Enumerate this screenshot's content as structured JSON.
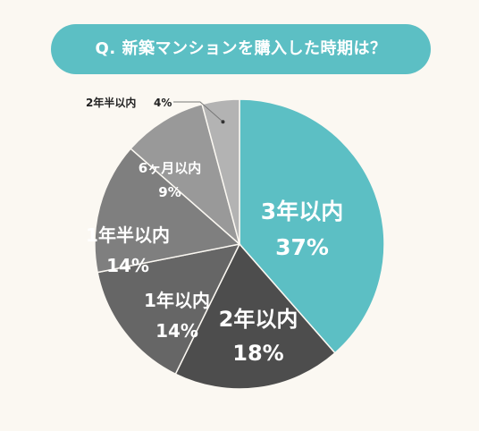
{
  "header": {
    "question": "Q. 新築マンションを購入した時期は？"
  },
  "chart_data": {
    "type": "pie",
    "start": "top",
    "direction": "clockwise",
    "slices": [
      {
        "label": "3年以内",
        "value": 37,
        "value_label": "37%",
        "color": "#5cbfc4"
      },
      {
        "label": "2年以内",
        "value": 18,
        "value_label": "18%",
        "color": "#4d4d4d"
      },
      {
        "label": "1年以内",
        "value": 14,
        "value_label": "14%",
        "color": "#666666"
      },
      {
        "label": "1年半以内",
        "value": 14,
        "value_label": "14%",
        "color": "#7f7f7f"
      },
      {
        "label": "6ヶ月以内",
        "value": 9,
        "value_label": "9%",
        "color": "#999999"
      },
      {
        "label": "2年半以内",
        "value": 4,
        "value_label": "4%",
        "color": "#b3b3b3"
      }
    ]
  }
}
